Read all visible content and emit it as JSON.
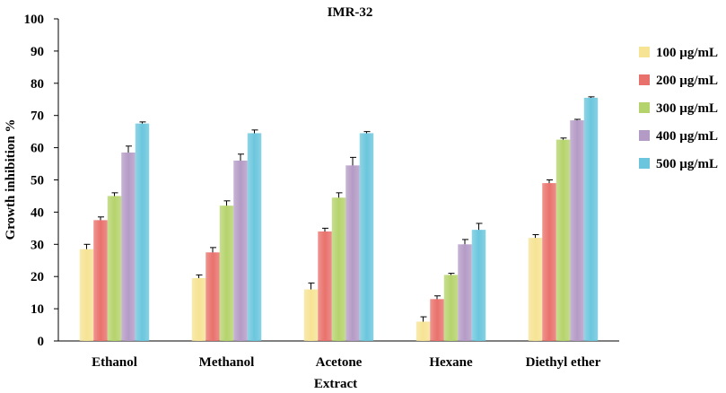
{
  "chart_data": {
    "type": "bar",
    "title": "IMR-32",
    "xlabel": "Extract",
    "ylabel": "Growth inhibition %",
    "ylim": [
      0,
      100
    ],
    "yticks": [
      "0",
      "10",
      "20",
      "30",
      "40",
      "50",
      "60",
      "70",
      "80",
      "90",
      "100"
    ],
    "categories": [
      "Ethanol",
      "Methanol",
      "Acetone",
      "Hexane",
      "Diethyl ether"
    ],
    "series": [
      {
        "name": "100 µg/mL",
        "color": "#f6e394",
        "values": [
          28.5,
          19.5,
          16,
          6,
          32
        ],
        "errors": [
          1.5,
          1.0,
          2.0,
          1.5,
          1.0
        ]
      },
      {
        "name": "200 µg/mL",
        "color": "#e9716c",
        "values": [
          37.5,
          27.5,
          34,
          13,
          49
        ],
        "errors": [
          1.0,
          1.5,
          1.0,
          1.0,
          1.0
        ]
      },
      {
        "name": "300 µg/mL",
        "color": "#b5d36c",
        "values": [
          45,
          42,
          44.5,
          20.5,
          62.5
        ],
        "errors": [
          1.0,
          1.5,
          1.5,
          0.5,
          0.5
        ]
      },
      {
        "name": "400 µg/mL",
        "color": "#b49bc6",
        "values": [
          58.5,
          56,
          54.5,
          30,
          68.5
        ],
        "errors": [
          2.0,
          2.0,
          2.5,
          1.5,
          0.3
        ]
      },
      {
        "name": "500 µg/mL",
        "color": "#6bc6dd",
        "values": [
          67.5,
          64.5,
          64.5,
          34.5,
          75.5
        ],
        "errors": [
          0.5,
          1.0,
          0.5,
          2.0,
          0.3
        ]
      }
    ],
    "grid": false,
    "legend": "right"
  }
}
